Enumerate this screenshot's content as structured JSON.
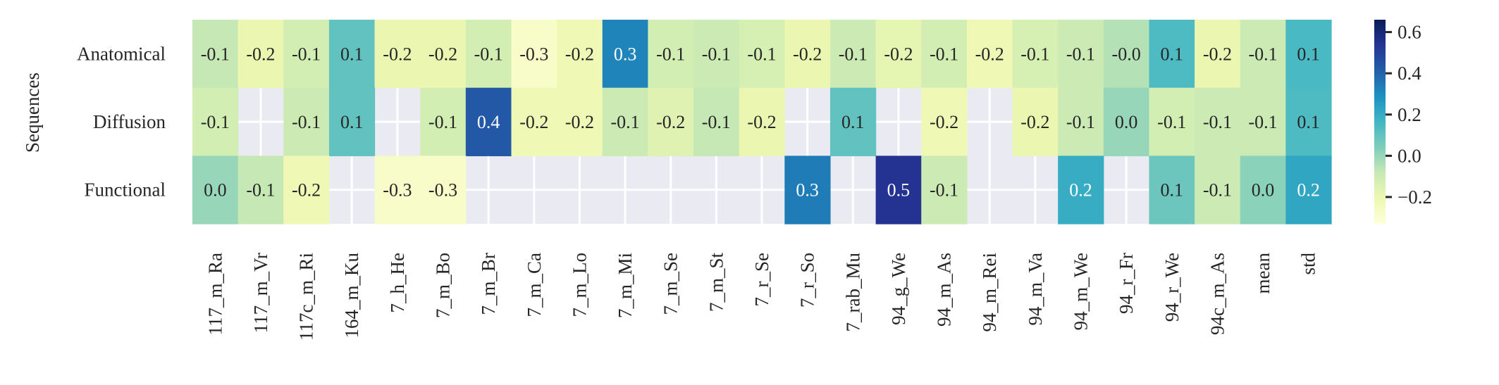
{
  "chart_data": {
    "type": "heatmap",
    "ylabel": "Sequences",
    "rows": [
      "Anatomical",
      "Diffusion",
      "Functional"
    ],
    "columns": [
      "117_m_Ra",
      "117_m_Vr",
      "117c_m_Ri",
      "164_m_Ku",
      "7_h_He",
      "7_m_Bo",
      "7_m_Br",
      "7_m_Ca",
      "7_m_Lo",
      "7_m_Mi",
      "7_m_Se",
      "7_m_St",
      "7_r_Se",
      "7_r_So",
      "7_rab_Mu",
      "94_g_We",
      "94_m_As",
      "94_m_Rei",
      "94_m_Va",
      "94_m_We",
      "94_r_Fr",
      "94_r_We",
      "94c_m_As",
      "mean",
      "std"
    ],
    "values": [
      [
        -0.08,
        -0.2,
        -0.12,
        0.1,
        -0.2,
        -0.2,
        -0.12,
        -0.28,
        -0.22,
        0.32,
        -0.12,
        -0.1,
        -0.13,
        -0.2,
        -0.1,
        -0.18,
        -0.12,
        -0.22,
        -0.13,
        -0.1,
        -0.05,
        0.14,
        -0.2,
        -0.1,
        0.15
      ],
      [
        -0.12,
        null,
        -0.1,
        0.1,
        null,
        -0.12,
        0.43,
        -0.22,
        -0.22,
        -0.1,
        -0.16,
        -0.08,
        -0.2,
        null,
        0.1,
        null,
        -0.22,
        null,
        -0.2,
        -0.1,
        0.0,
        -0.12,
        -0.1,
        -0.1,
        0.14
      ],
      [
        0.0,
        -0.08,
        -0.22,
        null,
        -0.28,
        -0.28,
        null,
        null,
        null,
        null,
        null,
        null,
        null,
        0.34,
        null,
        0.54,
        -0.1,
        null,
        null,
        0.2,
        null,
        0.08,
        -0.1,
        0.02,
        0.22
      ]
    ],
    "labels": [
      [
        "-0.1",
        "-0.2",
        "-0.1",
        "0.1",
        "-0.2",
        "-0.2",
        "-0.1",
        "-0.3",
        "-0.2",
        "0.3",
        "-0.1",
        "-0.1",
        "-0.1",
        "-0.2",
        "-0.1",
        "-0.2",
        "-0.1",
        "-0.2",
        "-0.1",
        "-0.1",
        "-0.0",
        "0.1",
        "-0.2",
        "-0.1",
        "0.1"
      ],
      [
        "-0.1",
        "",
        "-0.1",
        "0.1",
        "",
        "-0.1",
        "0.4",
        "-0.2",
        "-0.2",
        "-0.1",
        "-0.2",
        "-0.1",
        "-0.2",
        "",
        "0.1",
        "",
        "-0.2",
        "",
        "-0.2",
        "-0.1",
        "0.0",
        "-0.1",
        "-0.1",
        "-0.1",
        "0.1"
      ],
      [
        "0.0",
        "-0.1",
        "-0.2",
        "",
        "-0.3",
        "-0.3",
        "",
        "",
        "",
        "",
        "",
        "",
        "",
        "0.3",
        "",
        "0.5",
        "-0.1",
        "",
        "",
        "0.2",
        "",
        "0.1",
        "-0.1",
        "0.0",
        "0.2"
      ]
    ],
    "colormap": "YlGnBu",
    "vmin": -0.33,
    "vmax": 0.66,
    "missing_color": "#eaeaf2",
    "colorbar": {
      "ticks": [
        0.6,
        0.4,
        0.2,
        0.0,
        -0.2
      ],
      "tick_labels": [
        "0.6",
        "0.4",
        "0.2",
        "0.0",
        "−0.2"
      ]
    }
  }
}
